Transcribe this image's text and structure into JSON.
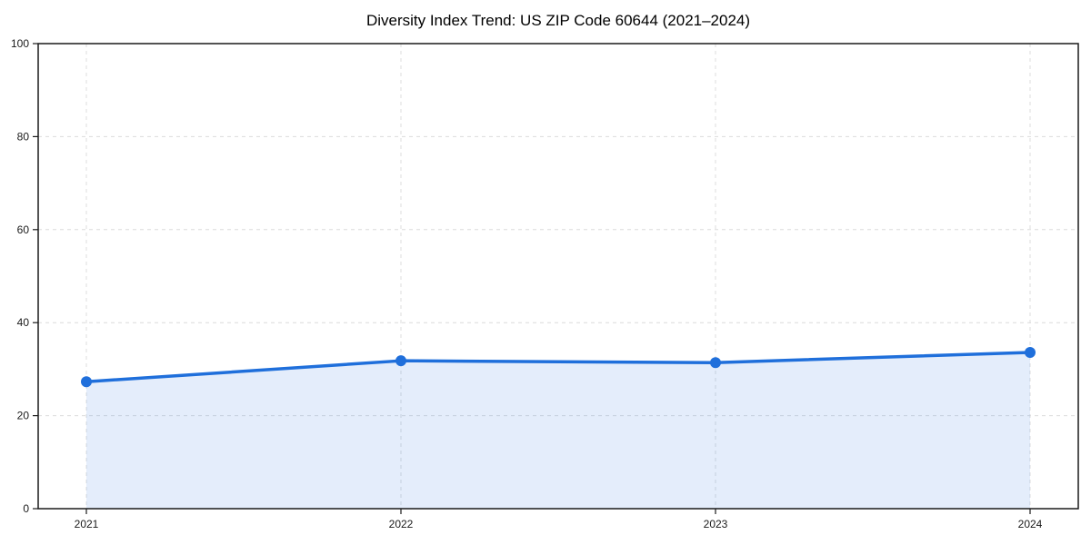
{
  "chart_data": {
    "type": "area",
    "title": "Diversity Index Trend: US ZIP Code 60644 (2021–2024)",
    "categories": [
      "2021",
      "2022",
      "2023",
      "2024"
    ],
    "series": [
      {
        "name": "Diversity Index",
        "values": [
          27.3,
          31.8,
          31.4,
          33.6
        ]
      }
    ],
    "xlabel": "",
    "ylabel": "",
    "ylim": [
      0,
      100
    ],
    "yticks": [
      0,
      20,
      40,
      60,
      80,
      100
    ],
    "grid": true,
    "grid_style": "dashed",
    "legend_position": "none",
    "marker": "circle",
    "fill_opacity": 0.12,
    "colors": {
      "line": "#1f6fdb",
      "marker": "#1f6fdb",
      "fill": "#1f6fdb",
      "grid": "#dcdcdc",
      "axis": "#1a1a1a",
      "tick_text": "#1a1a1a",
      "title_text": "#000000",
      "background": "#ffffff"
    }
  }
}
